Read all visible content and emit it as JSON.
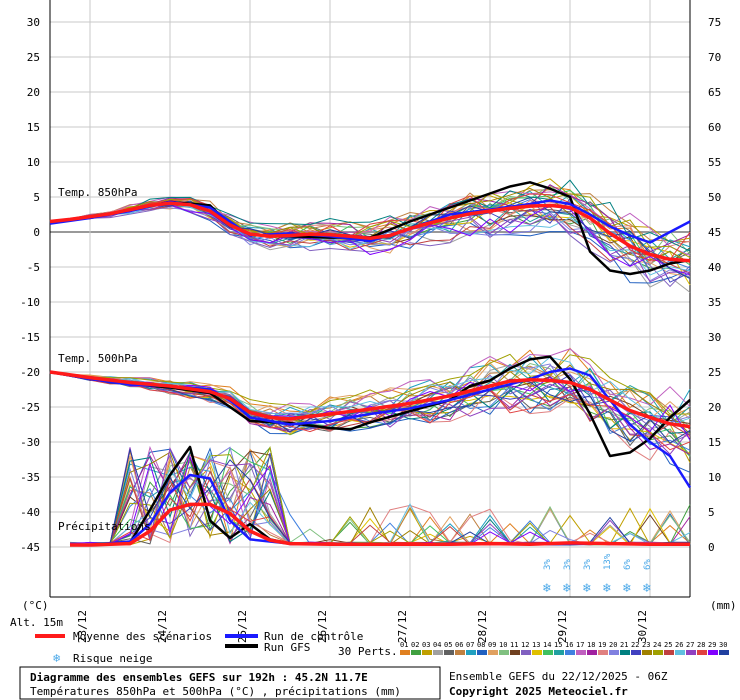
{
  "chart_data": {
    "type": "line",
    "left_axis": {
      "unit": "(°C)",
      "range": [
        -45,
        30
      ],
      "ticks": [
        30,
        25,
        20,
        15,
        10,
        5,
        0,
        -5,
        -10,
        -15,
        -20,
        -25,
        -30,
        -35,
        -40,
        -45
      ]
    },
    "right_axis": {
      "unit": "(mm)",
      "range": [
        0,
        75
      ],
      "ticks": [
        75,
        70,
        65,
        60,
        55,
        50,
        45,
        40,
        35,
        30,
        25,
        20,
        15,
        10,
        5,
        0
      ]
    },
    "x_tick_labels": [
      "23/12",
      "24/12",
      "25/12",
      "26/12",
      "27/12",
      "28/12",
      "29/12",
      "30/12"
    ],
    "panel_labels": {
      "t850": "Temp. 850hPa",
      "t500": "Temp. 500hPa",
      "precip": "Précipitations"
    },
    "altitude": "Alt. 15m",
    "snow_risk_labels": [
      "3%",
      "3%",
      "3%",
      "13%",
      "6%",
      "6%"
    ],
    "series": [
      {
        "name": "Moyenne des scénarios",
        "color": "#ff1a1a",
        "group": "t850",
        "x": [
          0,
          0.5,
          1,
          1.5,
          2,
          2.5,
          3,
          3.5,
          4,
          4.5,
          5,
          5.5,
          6,
          6.5,
          7,
          7.5,
          8,
          8.5,
          9,
          9.5,
          10,
          10.5,
          11,
          11.5,
          12,
          12.5,
          13,
          13.5,
          14,
          14.5,
          15,
          15.5,
          16
        ],
        "values": [
          1.5,
          1.8,
          2.2,
          2.6,
          3.2,
          3.8,
          4.1,
          3.9,
          3.0,
          1.0,
          -0.3,
          -0.6,
          -0.5,
          -0.3,
          -0.4,
          -0.6,
          -0.9,
          -0.5,
          0.5,
          1.3,
          2.0,
          2.6,
          3.0,
          3.4,
          3.7,
          3.8,
          3.5,
          2.0,
          -0.2,
          -2.0,
          -3.2,
          -3.9,
          -4.1
        ]
      },
      {
        "name": "Run de contrôle",
        "color": "#1a1aff",
        "group": "t850",
        "x": [
          0,
          1,
          2,
          3,
          4,
          4.5,
          5,
          6,
          7,
          8,
          9,
          10,
          11,
          12,
          12.5,
          13,
          13.5,
          14,
          14.5,
          15,
          15.5,
          16
        ],
        "values": [
          1.2,
          2.0,
          3.0,
          4.3,
          3.5,
          1.5,
          -0.5,
          -0.2,
          -0.6,
          -1.3,
          0.5,
          2.5,
          3.2,
          4.0,
          4.5,
          4.0,
          2.5,
          0.8,
          -0.5,
          -1.5,
          0.0,
          1.5
        ]
      },
      {
        "name": "Run GFS",
        "color": "#000000",
        "group": "t850",
        "x": [
          0,
          1,
          2,
          3,
          4,
          4.5,
          5,
          6,
          7,
          8,
          9,
          10,
          11,
          11.5,
          12,
          12.5,
          13,
          13.5,
          14,
          14.5,
          15,
          15.5,
          16
        ],
        "values": [
          1.3,
          2.1,
          3.1,
          4.3,
          3.8,
          1.0,
          -0.4,
          -0.6,
          -0.8,
          -0.8,
          1.5,
          3.5,
          5.5,
          6.5,
          7.1,
          6.2,
          5.0,
          -2.8,
          -5.5,
          -6.0,
          -5.5,
          -4.5,
          -4.0
        ]
      },
      {
        "name": "Moyenne des scénarios",
        "color": "#ff1a1a",
        "group": "t500",
        "x": [
          0,
          1,
          2,
          3,
          4,
          4.5,
          5,
          5.5,
          6,
          7,
          8,
          9,
          10,
          11,
          11.5,
          12,
          12.5,
          13,
          13.5,
          14,
          14.5,
          15,
          15.5,
          16
        ],
        "values": [
          -20.0,
          -20.8,
          -21.5,
          -22.0,
          -22.8,
          -23.8,
          -25.8,
          -26.5,
          -26.7,
          -26.0,
          -25.3,
          -24.5,
          -23.4,
          -22.0,
          -21.3,
          -21.1,
          -21.2,
          -21.5,
          -22.5,
          -24.0,
          -25.5,
          -26.5,
          -27.4,
          -27.8
        ]
      },
      {
        "name": "Run de contrôle",
        "color": "#1a1aff",
        "group": "t500",
        "x": [
          0,
          1,
          2,
          3,
          4,
          4.5,
          5,
          6,
          7,
          8,
          9,
          10,
          11,
          12,
          12.5,
          13,
          13.5,
          14,
          14.5,
          15,
          15.5,
          16
        ],
        "values": [
          -20.0,
          -21.0,
          -21.8,
          -22.0,
          -22.5,
          -24.0,
          -26.5,
          -27.5,
          -27.0,
          -26.0,
          -25.2,
          -24.0,
          -22.5,
          -21.0,
          -20.0,
          -19.5,
          -20.5,
          -24.0,
          -27.5,
          -30.0,
          -32.0,
          -36.5
        ]
      },
      {
        "name": "Run GFS",
        "color": "#000000",
        "group": "t500",
        "x": [
          0,
          1,
          2,
          3,
          4,
          4.5,
          5,
          6,
          7,
          7.5,
          8,
          9,
          10,
          10.5,
          11,
          11.5,
          12,
          12.5,
          13,
          13.5,
          14,
          14.5,
          15,
          15.5,
          16
        ],
        "values": [
          -20.0,
          -21.0,
          -21.7,
          -22.2,
          -23.0,
          -25.0,
          -27.0,
          -27.3,
          -28.0,
          -28.2,
          -27.2,
          -25.6,
          -24.0,
          -22.0,
          -21.2,
          -19.5,
          -18.2,
          -17.8,
          -21.0,
          -26.0,
          -32.0,
          -31.5,
          -29.5,
          -26.5,
          -24.0
        ]
      },
      {
        "name": "Moyenne des scénarios",
        "color": "#ff1a1a",
        "group": "precip",
        "x": [
          0.5,
          1,
          2,
          2.5,
          3,
          3.5,
          4,
          4.5,
          5,
          5.5,
          6,
          7,
          8,
          9,
          10,
          11,
          12,
          13,
          14,
          15,
          16
        ],
        "values": [
          0,
          0,
          0.2,
          2.0,
          5.0,
          5.8,
          5.8,
          4.5,
          2.0,
          0.7,
          0.2,
          0.1,
          0.1,
          0.1,
          0.1,
          0.2,
          0.1,
          0.3,
          0.2,
          0.1,
          0.1
        ]
      },
      {
        "name": "Run de contrôle",
        "color": "#1a1aff",
        "group": "precip",
        "x": [
          0.5,
          1,
          2,
          2.5,
          3,
          3.5,
          4,
          4.5,
          5,
          6,
          8,
          10,
          12,
          14,
          16
        ],
        "values": [
          0,
          0,
          0.5,
          3.0,
          7.5,
          10.0,
          9.5,
          3.5,
          0.8,
          0.2,
          0.1,
          0.1,
          0.1,
          0.2,
          0.1
        ]
      },
      {
        "name": "Run GFS",
        "color": "#000000",
        "group": "precip",
        "x": [
          0.5,
          1,
          2,
          2.5,
          3,
          3.5,
          4,
          4.5,
          5,
          5.5,
          6,
          8,
          10,
          12,
          14,
          16
        ],
        "values": [
          0,
          0,
          0.3,
          5.0,
          10.0,
          14.0,
          3.5,
          1.0,
          3.0,
          0.8,
          0.2,
          0.1,
          0.1,
          0.1,
          0.2,
          0.1
        ]
      }
    ]
  },
  "legend": {
    "mean_label": "Moyenne des scénarios",
    "control_label": "Run de contrôle",
    "gfs_label": "Run GFS",
    "snow_label": "Risque neige",
    "perts_label": "30 Perts.",
    "pert_numbers": [
      "01",
      "02",
      "03",
      "04",
      "05",
      "06",
      "07",
      "08",
      "09",
      "10",
      "11",
      "12",
      "13",
      "14",
      "15",
      "16",
      "17",
      "18",
      "19",
      "20",
      "21",
      "22",
      "23",
      "24",
      "25",
      "26",
      "27",
      "28",
      "29",
      "30"
    ],
    "pert_colors": [
      "#e08020",
      "#40a040",
      "#c0a000",
      "#a0a0a0",
      "#606060",
      "#c08040",
      "#20a0c0",
      "#2060c0",
      "#e0a060",
      "#80c080",
      "#704020",
      "#8060c0",
      "#e0c000",
      "#40c060",
      "#20a0a0",
      "#4080e0",
      "#c060c0",
      "#a020a0",
      "#e08080",
      "#8080e0",
      "#008080",
      "#4040c0",
      "#a08000",
      "#a0a000",
      "#c04040",
      "#60c0e0",
      "#9040c0",
      "#e04040",
      "#8000ff",
      "#2040a0"
    ]
  },
  "footer": {
    "title": "Diagramme des ensembles GEFS sur 192h : 45.2N 11.7E",
    "subtitle": "Températures 850hPa et 500hPa (°C) , précipitations (mm)",
    "run": "Ensemble GEFS du 22/12/2025 - 06Z",
    "copyright": "Copyright 2025 Meteociel.fr"
  }
}
